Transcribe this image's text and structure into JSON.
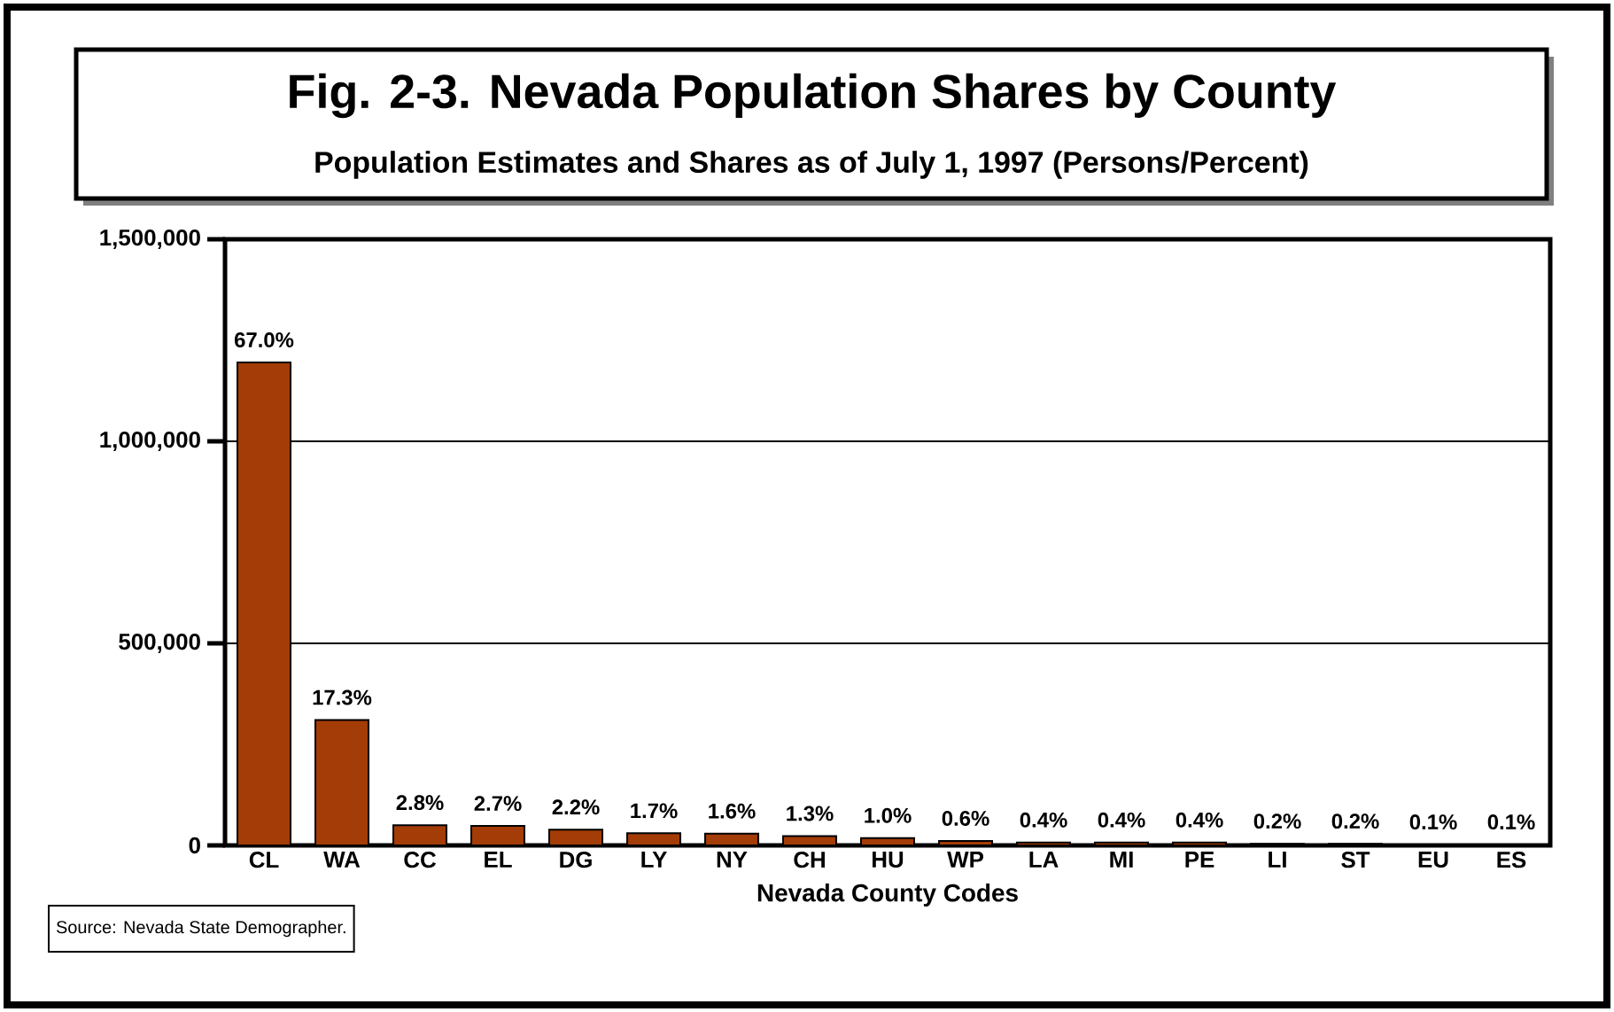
{
  "chart_data": {
    "type": "bar",
    "title": "Fig. 2-3. Nevada Population Shares by County",
    "subtitle": "Population Estimates and Shares as of July 1, 1997 (Persons/Percent)",
    "xlabel": "Nevada County Codes",
    "categories": [
      "CL",
      "WA",
      "CC",
      "EL",
      "DG",
      "LY",
      "NY",
      "CH",
      "HU",
      "WP",
      "LA",
      "MI",
      "PE",
      "LI",
      "ST",
      "EU",
      "ES"
    ],
    "values": [
      1195000,
      310000,
      50000,
      48000,
      39000,
      30000,
      29000,
      23000,
      18000,
      11000,
      7000,
      7000,
      7000,
      4000,
      4000,
      2000,
      2000
    ],
    "color": "#a33c06",
    "ylim": [
      0,
      1500000
    ],
    "yticks": [
      {
        "value": 0,
        "label": "0"
      },
      {
        "value": 500000,
        "label": "500,000"
      },
      {
        "value": 1000000,
        "label": "1,000,000"
      },
      {
        "value": 1500000,
        "label": "1,500,000"
      }
    ],
    "grid": "y",
    "annotations": [
      "Source:  Nevada State Demographer.",
      {
        "text": "67.0%",
        "x": "CL",
        "y": 1195000
      },
      {
        "text": "17.3%",
        "x": "WA",
        "y": 310000
      },
      {
        "text": "2.8%",
        "x": "CC",
        "y": 50000
      },
      {
        "text": "2.7%",
        "x": "EL",
        "y": 48000
      },
      {
        "text": "2.2%",
        "x": "DG",
        "y": 39000
      },
      {
        "text": "1.7%",
        "x": "LY",
        "y": 30000
      },
      {
        "text": "1.6%",
        "x": "NY",
        "y": 29000
      },
      {
        "text": "1.3%",
        "x": "CH",
        "y": 23000
      },
      {
        "text": "1.0%",
        "x": "HU",
        "y": 18000
      },
      {
        "text": "0.6%",
        "x": "WP",
        "y": 11000
      },
      {
        "text": "0.4%",
        "x": "LA",
        "y": 7000
      },
      {
        "text": "0.4%",
        "x": "MI",
        "y": 7000
      },
      {
        "text": "0.4%",
        "x": "PE",
        "y": 7000
      },
      {
        "text": "0.2%",
        "x": "LI",
        "y": 4000
      },
      {
        "text": "0.2%",
        "x": "ST",
        "y": 4000
      },
      {
        "text": "0.1%",
        "x": "EU",
        "y": 2000
      },
      {
        "text": "0.1%",
        "x": "ES",
        "y": 2000
      }
    ]
  }
}
